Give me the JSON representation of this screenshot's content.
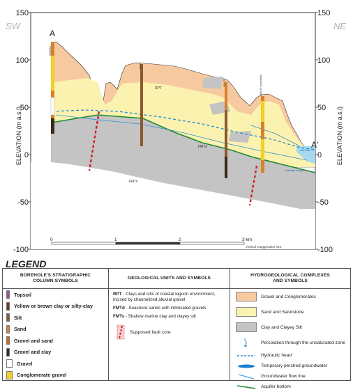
{
  "section": {
    "left_compass": "SW",
    "right_compass": "NE",
    "start_label": "A",
    "end_label": "A'",
    "y_axis_label": "ELEVATION (m a.s.l)",
    "y_ticks": [
      "150",
      "100",
      "50",
      "0",
      "-50",
      "-100"
    ],
    "scale_labels": [
      "0",
      "1",
      "2",
      "3 km"
    ],
    "vertical_exaggeration": "Vertical exaggeration X15",
    "unit_labels": {
      "rpt": "RPT",
      "fmt_d": "FMTd",
      "fmt_s": "FMTs"
    },
    "borehole_labels": [
      "SAN06A",
      "16271",
      "16A071",
      "16A078 (projected)"
    ],
    "annotations": {
      "sea_level": "sea level",
      "saltwater_wedge": "saltwater wedge"
    }
  },
  "legend": {
    "title": "LEGEND",
    "boreholes": {
      "header": [
        "BOREHOLE'S STRATIGRAPHIC",
        "COLUMN SYMBOLS"
      ],
      "items": [
        {
          "label": "Topsoil",
          "color": "#a0528b"
        },
        {
          "label": "Yellow or brown clay or silty-clay",
          "color": "#6b3d1e"
        },
        {
          "label": "Silt",
          "color": "#8a5a2e"
        },
        {
          "label": "Sand",
          "color": "#d9822b"
        },
        {
          "label": "Gravel and sand",
          "color": "#c86a1b"
        },
        {
          "label": "Gravel and clay",
          "color": "#3a2a1a"
        },
        {
          "label": "Gravel",
          "color": "#ffffff"
        },
        {
          "label": "Conglomerate gravel",
          "color": "#f2d024"
        }
      ]
    },
    "geology": {
      "header": [
        "GEOLOGICAL UNITS AND SYMBOLS"
      ],
      "items": [
        {
          "code": "RPT",
          "text": " - Clays and silts of coastal lagoon environment, incised by channelized alluvial gravel"
        },
        {
          "code": "FMTd",
          "text": " - Seashore sands with imbricated gravels"
        },
        {
          "code": "FMTs",
          "text": " - Shallow marine clay and clayey silt"
        }
      ],
      "fault_label": "Supposed fault core"
    },
    "hydro": {
      "header": [
        "HYDROGEOLOGICAL COMPLEXES",
        "AND SYMBOLS"
      ],
      "items": [
        {
          "label": "Gravel and Conglomerates",
          "color": "#f7c9a0"
        },
        {
          "label": "Sand and Sandstone",
          "color": "#fbf2b0"
        },
        {
          "label": "Clay and Clayey Silt",
          "color": "#c4c4c4"
        }
      ],
      "symbols": [
        "Percolation through the unsaturated zone",
        "Hydraulic head",
        "Temporary perched groundwater",
        "Groundwater flow line",
        "Aquifer bottom"
      ]
    }
  }
}
